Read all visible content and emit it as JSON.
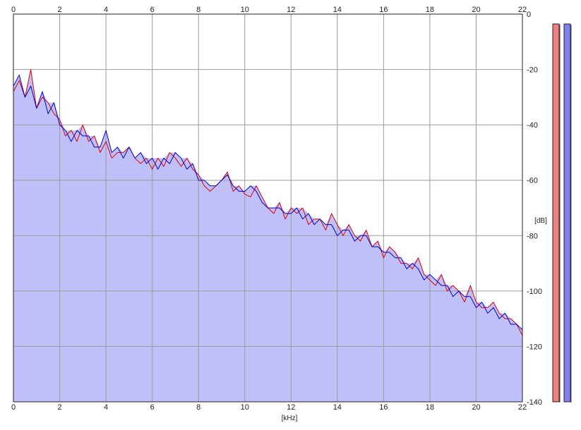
{
  "chart_data": {
    "type": "area",
    "xlabel": "[kHz]",
    "ylabel": "[dB]",
    "xlim": [
      0,
      22
    ],
    "ylim": [
      -140,
      0
    ],
    "x_ticks": [
      0,
      2,
      4,
      6,
      8,
      10,
      12,
      14,
      16,
      18,
      20,
      22
    ],
    "x_tick_labels": [
      "0",
      "2",
      "4",
      "6",
      "8",
      "10",
      "12",
      "14",
      "16",
      "18",
      "20",
      "22"
    ],
    "y_ticks": [
      0,
      -20,
      -40,
      -60,
      -80,
      -100,
      -120,
      -140
    ],
    "y_tick_labels": [
      "0",
      "-20",
      "-40",
      "-60",
      "-80",
      "-100",
      "-120",
      "-140"
    ],
    "grid": true,
    "fill_color": "#c0c0f8",
    "x": [
      0,
      0.25,
      0.5,
      0.75,
      1,
      1.25,
      1.5,
      1.75,
      2,
      2.25,
      2.5,
      2.75,
      3,
      3.25,
      3.5,
      3.75,
      4,
      4.25,
      4.5,
      4.75,
      5,
      5.25,
      5.5,
      5.75,
      6,
      6.25,
      6.5,
      6.75,
      7,
      7.25,
      7.5,
      7.75,
      8,
      8.25,
      8.5,
      8.75,
      9,
      9.25,
      9.5,
      9.75,
      10,
      10.25,
      10.5,
      10.75,
      11,
      11.25,
      11.5,
      11.75,
      12,
      12.25,
      12.5,
      12.75,
      13,
      13.25,
      13.5,
      13.75,
      14,
      14.25,
      14.5,
      14.75,
      15,
      15.25,
      15.5,
      15.75,
      16,
      16.25,
      16.5,
      16.75,
      17,
      17.25,
      17.5,
      17.75,
      18,
      18.25,
      18.5,
      18.75,
      19,
      19.25,
      19.5,
      19.75,
      20,
      20.25,
      20.5,
      20.75,
      21,
      21.25,
      21.5,
      21.75,
      22
    ],
    "series": [
      {
        "color": "#dd0000",
        "values": [
          -28,
          -24,
          -30,
          -20,
          -34,
          -30,
          -32,
          -36,
          -38,
          -44,
          -42,
          -46,
          -40,
          -46,
          -44,
          -50,
          -46,
          -52,
          -50,
          -50,
          -48,
          -52,
          -54,
          -52,
          -56,
          -52,
          -55,
          -50,
          -52,
          -55,
          -52,
          -56,
          -58,
          -62,
          -64,
          -62,
          -60,
          -57,
          -64,
          -62,
          -65,
          -66,
          -62,
          -66,
          -70,
          -72,
          -68,
          -74,
          -70,
          -72,
          -70,
          -76,
          -74,
          -74,
          -78,
          -72,
          -76,
          -80,
          -76,
          -80,
          -82,
          -78,
          -84,
          -82,
          -88,
          -84,
          -86,
          -90,
          -90,
          -92,
          -88,
          -94,
          -96,
          -98,
          -94,
          -100,
          -98,
          -100,
          -104,
          -98,
          -104,
          -106,
          -106,
          -104,
          -108,
          -110,
          -110,
          -112,
          -116
        ]
      },
      {
        "color": "#0000cc",
        "values": [
          -26,
          -22,
          -30,
          -26,
          -34,
          -28,
          -36,
          -32,
          -40,
          -42,
          -46,
          -42,
          -44,
          -44,
          -48,
          -48,
          -42,
          -50,
          -48,
          -52,
          -48,
          -52,
          -50,
          -54,
          -52,
          -56,
          -52,
          -54,
          -50,
          -52,
          -56,
          -54,
          -60,
          -60,
          -62,
          -62,
          -60,
          -58,
          -62,
          -64,
          -64,
          -62,
          -64,
          -68,
          -70,
          -70,
          -70,
          -72,
          -72,
          -70,
          -74,
          -72,
          -76,
          -74,
          -76,
          -76,
          -80,
          -78,
          -78,
          -82,
          -80,
          -80,
          -84,
          -84,
          -86,
          -86,
          -88,
          -88,
          -92,
          -90,
          -92,
          -96,
          -94,
          -96,
          -98,
          -98,
          -102,
          -100,
          -102,
          -102,
          -106,
          -104,
          -108,
          -106,
          -110,
          -108,
          -112,
          -112,
          -114
        ]
      }
    ]
  },
  "channel_meters": [
    {
      "color": "#f08080",
      "level": 0
    },
    {
      "color": "#8080f0",
      "level": 0
    }
  ]
}
